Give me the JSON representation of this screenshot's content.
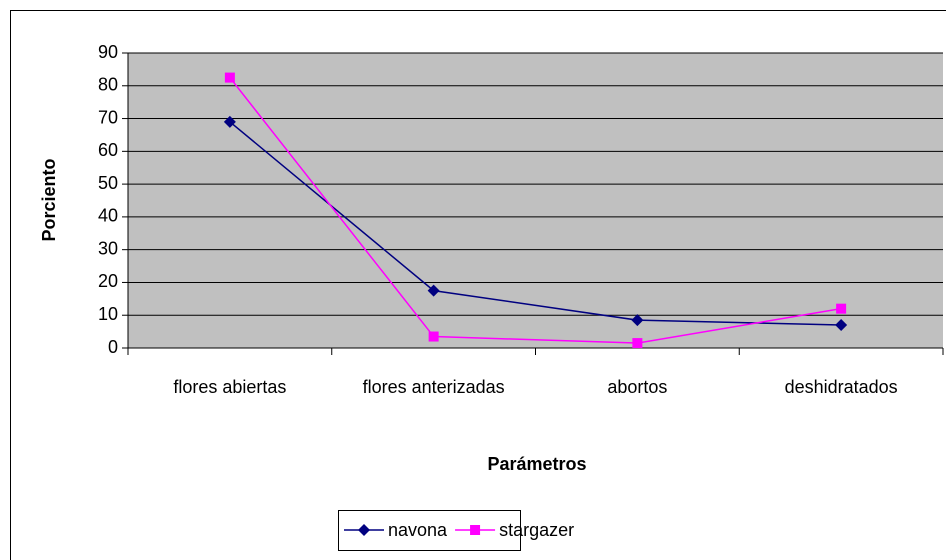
{
  "chart_data": {
    "type": "line",
    "categories": [
      "flores abiertas",
      "flores anterizadas",
      "abortos",
      "deshidratados"
    ],
    "series": [
      {
        "name": "navona",
        "color": "#000080",
        "marker": "diamond",
        "values": [
          69,
          17.5,
          8.5,
          7
        ]
      },
      {
        "name": "stargazer",
        "color": "#ff00ff",
        "marker": "square",
        "values": [
          82.5,
          3.5,
          1.5,
          12
        ]
      }
    ],
    "ylim": [
      0,
      90
    ],
    "yticks": [
      0,
      10,
      20,
      30,
      40,
      50,
      60,
      70,
      80,
      90
    ],
    "grid": true,
    "xlabel": "Parámetros",
    "ylabel": "Porciento",
    "legend": "bottom",
    "plot_background": "#c0c0c0"
  }
}
